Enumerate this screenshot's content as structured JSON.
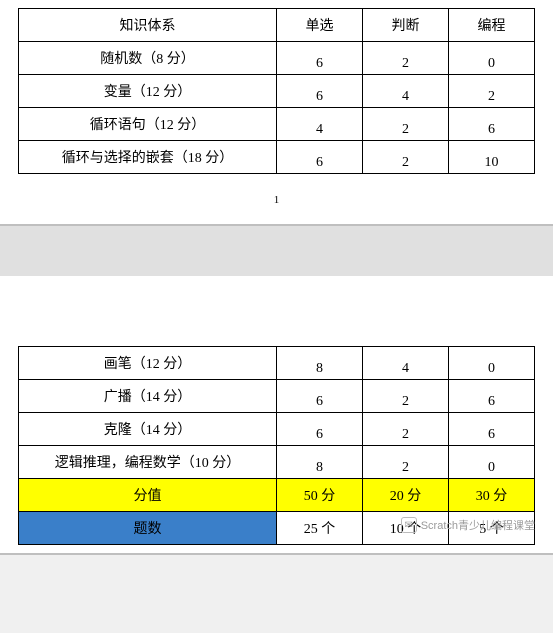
{
  "table1": {
    "columns": [
      "知识体系",
      "单选",
      "判断",
      "编程"
    ],
    "rows": [
      [
        "随机数（8 分）",
        "6",
        "2",
        "0"
      ],
      [
        "变量（12 分）",
        "6",
        "4",
        "2"
      ],
      [
        "循环语句（12 分）",
        "4",
        "2",
        "6"
      ],
      [
        "循环与选择的嵌套（18 分）",
        "6",
        "2",
        "10"
      ]
    ]
  },
  "pagenum": "1",
  "table2": {
    "rows": [
      [
        "画笔（12 分）",
        "8",
        "4",
        "0"
      ],
      [
        "广播（14 分）",
        "6",
        "2",
        "6"
      ],
      [
        "克隆（14 分）",
        "6",
        "2",
        "6"
      ],
      [
        "逻辑推理，编程数学（10 分）",
        "8",
        "2",
        "0"
      ]
    ],
    "summary1": {
      "label": "分值",
      "vals": [
        "50 分",
        "20 分",
        "30 分"
      ]
    },
    "summary2": {
      "label": "题数",
      "vals": [
        "25 个",
        "10 个",
        "5 个"
      ]
    }
  },
  "watermark": "Scratch青少儿编程课堂",
  "colors": {
    "yellow": "#ffff00",
    "blue": "#3a7fc9",
    "border": "#000000",
    "pagebg": "#ffffff",
    "gapbg": "#e0e0e0"
  }
}
